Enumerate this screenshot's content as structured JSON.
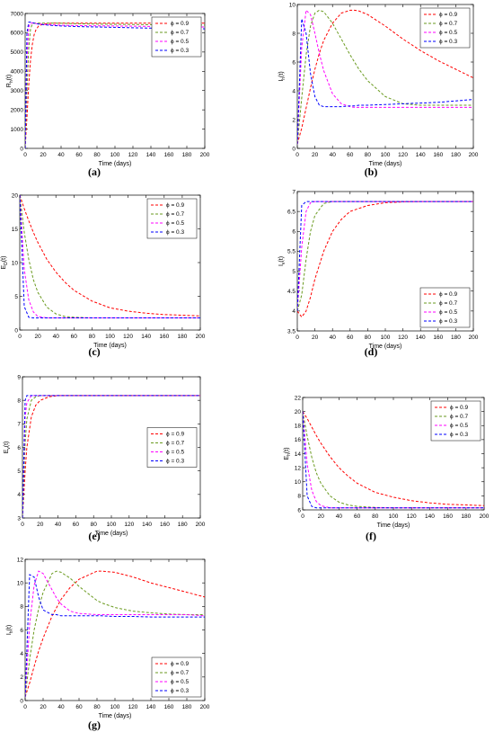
{
  "figure": {
    "legend_symbol": "ϕ",
    "colors": [
      "#ff0000",
      "#6a9a1f",
      "#ff00ff",
      "#0000ff"
    ]
  },
  "chart_data": [
    {
      "id": "a",
      "type": "line",
      "panel_label": "(a)",
      "xlabel": "Time (days)",
      "ylabel": "R_h(t)",
      "ylabel_main": "R",
      "ylabel_sub": "h",
      "ylabel_tail": "(t)",
      "xlim": [
        0,
        200
      ],
      "ylim": [
        0,
        7000
      ],
      "xticks": [
        0,
        20,
        40,
        60,
        80,
        100,
        120,
        140,
        160,
        180,
        200
      ],
      "yticks": [
        0,
        1000,
        2000,
        3000,
        4000,
        5000,
        6000,
        7000
      ],
      "legend_position": "top-right",
      "x": [
        0,
        2,
        4,
        6,
        8,
        10,
        12,
        15,
        20,
        30,
        40,
        60,
        80,
        100,
        120,
        140,
        160,
        180,
        200
      ],
      "series": [
        {
          "name": "ϕ = 0.9",
          "values": [
            0,
            1600,
            3300,
            4600,
            5400,
            5900,
            6150,
            6350,
            6450,
            6500,
            6500,
            6500,
            6500,
            6500,
            6500,
            6500,
            6500,
            6500,
            6500
          ]
        },
        {
          "name": "ϕ = 0.7",
          "values": [
            0,
            3000,
            5200,
            6200,
            6450,
            6500,
            6500,
            6500,
            6500,
            6500,
            6490,
            6470,
            6450,
            6440,
            6430,
            6420,
            6410,
            6400,
            6400
          ]
        },
        {
          "name": "ϕ = 0.5",
          "values": [
            0,
            4600,
            6300,
            6500,
            6500,
            6500,
            6480,
            6460,
            6440,
            6410,
            6390,
            6370,
            6360,
            6350,
            6340,
            6330,
            6320,
            6310,
            6300
          ]
        },
        {
          "name": "ϕ = 0.3",
          "values": [
            0,
            6000,
            6550,
            6550,
            6530,
            6500,
            6480,
            6450,
            6420,
            6380,
            6350,
            6320,
            6300,
            6280,
            6260,
            6240,
            6230,
            6220,
            6200
          ]
        }
      ]
    },
    {
      "id": "b",
      "type": "line",
      "panel_label": "(b)",
      "xlabel": "Time (days)",
      "ylabel": "I_h(t)",
      "ylabel_main": "I",
      "ylabel_sub": "h",
      "ylabel_tail": "(t)",
      "xlim": [
        0,
        200
      ],
      "ylim": [
        0,
        10
      ],
      "xticks": [
        0,
        20,
        40,
        60,
        80,
        100,
        120,
        140,
        160,
        180,
        200
      ],
      "yticks": [
        0,
        2,
        4,
        6,
        8,
        10
      ],
      "legend_position": "top-right",
      "x": [
        0,
        5,
        10,
        15,
        20,
        25,
        30,
        40,
        50,
        60,
        65,
        70,
        80,
        100,
        120,
        140,
        160,
        180,
        200
      ],
      "series": [
        {
          "name": "ϕ = 0.9",
          "values": [
            0.3,
            1.4,
            2.8,
            4.2,
            5.5,
            6.6,
            7.5,
            8.7,
            9.4,
            9.6,
            9.6,
            9.55,
            9.3,
            8.5,
            7.6,
            6.8,
            6.1,
            5.5,
            4.9
          ]
        },
        {
          "name": "ϕ = 0.7",
          "values": [
            0.3,
            3.5,
            6.5,
            8.5,
            9.4,
            9.6,
            9.5,
            8.7,
            7.6,
            6.5,
            6.0,
            5.5,
            4.7,
            3.6,
            3.1,
            3.0,
            3.0,
            3.0,
            3.0
          ]
        },
        {
          "name": "ϕ = 0.5",
          "values": [
            0.3,
            7.0,
            9.6,
            9.3,
            8.0,
            6.6,
            5.4,
            3.8,
            3.1,
            2.9,
            2.85,
            2.85,
            2.85,
            2.85,
            2.85,
            2.85,
            2.85,
            2.85,
            2.85
          ]
        },
        {
          "name": "ϕ = 0.3",
          "values": [
            0.3,
            9.0,
            8.0,
            5.2,
            3.6,
            3.0,
            2.9,
            2.9,
            2.9,
            2.95,
            2.95,
            3.0,
            3.0,
            3.05,
            3.1,
            3.15,
            3.2,
            3.3,
            3.4
          ]
        }
      ]
    },
    {
      "id": "c",
      "type": "line",
      "panel_label": "(c)",
      "xlabel": "Time (days)",
      "ylabel": "E_D(t)",
      "ylabel_main": "E",
      "ylabel_sub": "D",
      "ylabel_tail": "(t)",
      "xlim": [
        0,
        200
      ],
      "ylim": [
        0,
        20
      ],
      "xticks": [
        0,
        20,
        40,
        60,
        80,
        100,
        120,
        140,
        160,
        180,
        200
      ],
      "yticks": [
        0,
        5,
        10,
        15,
        20
      ],
      "legend_position": "top-right",
      "x": [
        0,
        5,
        10,
        15,
        20,
        30,
        40,
        50,
        60,
        80,
        100,
        120,
        140,
        160,
        180,
        200
      ],
      "series": [
        {
          "name": "ϕ = 0.9",
          "values": [
            20,
            18,
            16.2,
            14.5,
            13,
            10.5,
            8.6,
            7.1,
            5.9,
            4.3,
            3.3,
            2.8,
            2.5,
            2.3,
            2.2,
            2.1
          ]
        },
        {
          "name": "ϕ = 0.7",
          "values": [
            20,
            14.5,
            10.5,
            7.5,
            5.6,
            3.4,
            2.4,
            2.0,
            1.9,
            1.8,
            1.8,
            1.8,
            1.8,
            1.8,
            1.8,
            1.8
          ]
        },
        {
          "name": "ϕ = 0.5",
          "values": [
            20,
            9.0,
            4.5,
            2.7,
            2.0,
            1.8,
            1.8,
            1.8,
            1.8,
            1.8,
            1.8,
            1.8,
            1.8,
            1.8,
            1.8,
            1.8
          ]
        },
        {
          "name": "ϕ = 0.3",
          "values": [
            20,
            3.5,
            1.9,
            1.8,
            1.8,
            1.8,
            1.8,
            1.8,
            1.8,
            1.8,
            1.8,
            1.8,
            1.8,
            1.8,
            1.8,
            1.8
          ]
        }
      ]
    },
    {
      "id": "d",
      "type": "line",
      "panel_label": "(d)",
      "xlabel": "Time (days)",
      "ylabel": "I_v(t)",
      "ylabel_main": "I",
      "ylabel_sub": "v",
      "ylabel_tail": "(t)",
      "xlim": [
        0,
        200
      ],
      "ylim": [
        3.5,
        7
      ],
      "xticks": [
        0,
        20,
        40,
        60,
        80,
        100,
        120,
        140,
        160,
        180,
        200
      ],
      "yticks": [
        3.5,
        4,
        4.5,
        5,
        5.5,
        6,
        6.5,
        7
      ],
      "legend_position": "bottom-right",
      "x": [
        0,
        5,
        10,
        15,
        20,
        30,
        40,
        50,
        60,
        80,
        100,
        120,
        140,
        160,
        180,
        200
      ],
      "series": [
        {
          "name": "ϕ = 0.9",
          "values": [
            4.0,
            3.85,
            4.0,
            4.35,
            4.8,
            5.5,
            6.0,
            6.3,
            6.5,
            6.65,
            6.72,
            6.74,
            6.75,
            6.75,
            6.75,
            6.75
          ]
        },
        {
          "name": "ϕ = 0.7",
          "values": [
            4.0,
            4.4,
            5.3,
            6.0,
            6.4,
            6.7,
            6.75,
            6.75,
            6.75,
            6.75,
            6.75,
            6.75,
            6.75,
            6.75,
            6.75,
            6.75
          ]
        },
        {
          "name": "ϕ = 0.5",
          "values": [
            4.0,
            5.6,
            6.5,
            6.72,
            6.75,
            6.75,
            6.75,
            6.75,
            6.75,
            6.75,
            6.75,
            6.75,
            6.75,
            6.75,
            6.75,
            6.75
          ]
        },
        {
          "name": "ϕ = 0.3",
          "values": [
            4.0,
            6.65,
            6.75,
            6.75,
            6.75,
            6.75,
            6.75,
            6.75,
            6.75,
            6.75,
            6.75,
            6.75,
            6.75,
            6.75,
            6.75,
            6.75
          ]
        }
      ]
    },
    {
      "id": "e",
      "type": "line",
      "panel_label": "(e)",
      "xlabel": "Time (days)",
      "ylabel": "E_v(t)",
      "ylabel_main": "E",
      "ylabel_sub": "v",
      "ylabel_tail": "(t)",
      "xlim": [
        0,
        200
      ],
      "ylim": [
        3,
        9
      ],
      "xticks": [
        0,
        20,
        40,
        60,
        80,
        100,
        120,
        140,
        160,
        180,
        200
      ],
      "yticks": [
        3,
        4,
        5,
        6,
        7,
        8,
        9
      ],
      "legend_position": "right",
      "x": [
        0,
        3,
        5,
        10,
        15,
        20,
        30,
        40,
        60,
        80,
        100,
        120,
        140,
        160,
        180,
        200
      ],
      "series": [
        {
          "name": "ϕ = 0.9",
          "values": [
            3.0,
            5.0,
            6.0,
            7.3,
            7.8,
            8.0,
            8.15,
            8.2,
            8.2,
            8.2,
            8.2,
            8.2,
            8.2,
            8.2,
            8.2,
            8.2
          ]
        },
        {
          "name": "ϕ = 0.7",
          "values": [
            3.0,
            6.2,
            7.2,
            8.0,
            8.15,
            8.2,
            8.2,
            8.2,
            8.2,
            8.2,
            8.2,
            8.2,
            8.2,
            8.2,
            8.2,
            8.2
          ]
        },
        {
          "name": "ϕ = 0.5",
          "values": [
            3.0,
            7.3,
            7.9,
            8.2,
            8.2,
            8.2,
            8.2,
            8.2,
            8.2,
            8.2,
            8.2,
            8.2,
            8.2,
            8.2,
            8.2,
            8.2
          ]
        },
        {
          "name": "ϕ = 0.3",
          "values": [
            3.0,
            8.0,
            8.2,
            8.2,
            8.2,
            8.2,
            8.2,
            8.2,
            8.2,
            8.2,
            8.2,
            8.2,
            8.2,
            8.2,
            8.2,
            8.2
          ]
        }
      ]
    },
    {
      "id": "f",
      "type": "line",
      "panel_label": "(f)",
      "xlabel": "Time (days)",
      "ylabel": "E_h(t)",
      "ylabel_main": "E",
      "ylabel_sub": "h",
      "ylabel_tail": "(t)",
      "xlim": [
        0,
        200
      ],
      "ylim": [
        6,
        22
      ],
      "xticks": [
        0,
        20,
        40,
        60,
        80,
        100,
        120,
        140,
        160,
        180,
        200
      ],
      "yticks": [
        6,
        8,
        10,
        12,
        14,
        16,
        18,
        20,
        22
      ],
      "legend_position": "top-right",
      "x": [
        0,
        5,
        10,
        15,
        20,
        30,
        40,
        50,
        60,
        80,
        100,
        120,
        140,
        160,
        180,
        200
      ],
      "series": [
        {
          "name": "ϕ = 0.9",
          "values": [
            20,
            19.0,
            17.8,
            16.6,
            15.5,
            13.6,
            12.0,
            10.8,
            9.8,
            8.5,
            7.8,
            7.3,
            7.0,
            6.8,
            6.7,
            6.6
          ]
        },
        {
          "name": "ϕ = 0.7",
          "values": [
            20,
            16.5,
            13.5,
            11.3,
            9.8,
            8.0,
            7.1,
            6.7,
            6.5,
            6.35,
            6.3,
            6.3,
            6.3,
            6.3,
            6.3,
            6.3
          ]
        },
        {
          "name": "ϕ = 0.5",
          "values": [
            20,
            12.5,
            8.8,
            7.2,
            6.6,
            6.3,
            6.3,
            6.3,
            6.3,
            6.3,
            6.3,
            6.3,
            6.3,
            6.3,
            6.3,
            6.3
          ]
        },
        {
          "name": "ϕ = 0.3",
          "values": [
            20,
            8.0,
            6.5,
            6.3,
            6.3,
            6.3,
            6.3,
            6.3,
            6.3,
            6.3,
            6.3,
            6.3,
            6.3,
            6.3,
            6.3,
            6.3
          ]
        }
      ]
    },
    {
      "id": "g",
      "type": "line",
      "panel_label": "(g)",
      "xlabel": "Time (days)",
      "ylabel": "I_h(t)",
      "ylabel_main": "I",
      "ylabel_sub": "h",
      "ylabel_tail": "(t)",
      "xlim": [
        0,
        200
      ],
      "ylim": [
        0,
        12
      ],
      "xticks": [
        0,
        20,
        40,
        60,
        80,
        100,
        120,
        140,
        160,
        180,
        200
      ],
      "yticks": [
        0,
        2,
        4,
        6,
        8,
        10,
        12
      ],
      "legend_position": "bottom-right",
      "x": [
        0,
        5,
        10,
        15,
        20,
        30,
        35,
        40,
        50,
        60,
        80,
        85,
        100,
        120,
        140,
        160,
        180,
        200
      ],
      "series": [
        {
          "name": "ϕ = 0.9",
          "values": [
            0.3,
            1.5,
            2.9,
            4.2,
            5.3,
            7.2,
            7.9,
            8.6,
            9.6,
            10.3,
            11.0,
            11.0,
            10.9,
            10.5,
            10.0,
            9.6,
            9.2,
            8.8
          ]
        },
        {
          "name": "ϕ = 0.7",
          "values": [
            0.3,
            3.5,
            6.0,
            7.8,
            9.2,
            10.8,
            11.0,
            10.9,
            10.4,
            9.7,
            8.5,
            8.3,
            7.9,
            7.6,
            7.45,
            7.35,
            7.3,
            7.3
          ]
        },
        {
          "name": "ϕ = 0.5",
          "values": [
            0.3,
            6.5,
            9.8,
            11.0,
            10.8,
            9.4,
            8.7,
            8.2,
            7.6,
            7.4,
            7.3,
            7.3,
            7.3,
            7.3,
            7.3,
            7.3,
            7.3,
            7.2
          ]
        },
        {
          "name": "ϕ = 0.3",
          "values": [
            0.3,
            10.7,
            10.5,
            8.8,
            7.7,
            7.3,
            7.3,
            7.2,
            7.2,
            7.2,
            7.2,
            7.2,
            7.15,
            7.15,
            7.1,
            7.1,
            7.1,
            7.1
          ]
        }
      ]
    }
  ]
}
